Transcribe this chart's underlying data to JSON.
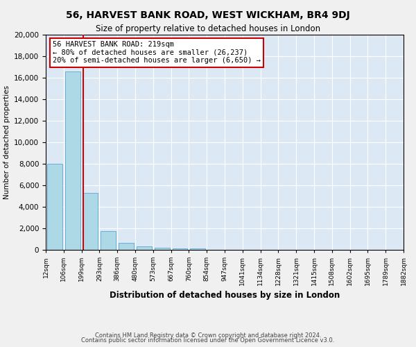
{
  "title": "56, HARVEST BANK ROAD, WEST WICKHAM, BR4 9DJ",
  "subtitle": "Size of property relative to detached houses in London",
  "xlabel": "Distribution of detached houses by size in London",
  "ylabel": "Number of detached properties",
  "bar_values": [
    8000,
    16600,
    5300,
    1750,
    650,
    300,
    200,
    150,
    150,
    30,
    20,
    15,
    10,
    8,
    6,
    5,
    4,
    3,
    2,
    2
  ],
  "bar_labels": [
    "12sqm",
    "106sqm",
    "199sqm",
    "293sqm",
    "386sqm",
    "480sqm",
    "573sqm",
    "667sqm",
    "760sqm",
    "854sqm",
    "947sqm",
    "1041sqm",
    "1134sqm",
    "1228sqm",
    "1321sqm",
    "1415sqm",
    "1508sqm",
    "1602sqm",
    "1695sqm",
    "1789sqm"
  ],
  "tick_labels": [
    "12sqm",
    "106sqm",
    "199sqm",
    "293sqm",
    "386sqm",
    "480sqm",
    "573sqm",
    "667sqm",
    "760sqm",
    "854sqm",
    "947sqm",
    "1041sqm",
    "1134sqm",
    "1228sqm",
    "1321sqm",
    "1415sqm",
    "1508sqm",
    "1602sqm",
    "1695sqm",
    "1789sqm",
    "1882sqm"
  ],
  "bar_color": "#add8e6",
  "bar_edgecolor": "#6baed6",
  "property_line_x": 2,
  "property_line_color": "#cc0000",
  "annotation_text": "56 HARVEST BANK ROAD: 219sqm\n← 80% of detached houses are smaller (26,237)\n20% of semi-detached houses are larger (6,650) →",
  "annotation_box_color": "#cc0000",
  "ylim": [
    0,
    20000
  ],
  "yticks": [
    0,
    2000,
    4000,
    6000,
    8000,
    10000,
    12000,
    14000,
    16000,
    18000,
    20000
  ],
  "background_color": "#dce9f5",
  "fig_background": "#f0f0f0",
  "footer1": "Contains HM Land Registry data © Crown copyright and database right 2024.",
  "footer2": "Contains public sector information licensed under the Open Government Licence v3.0."
}
